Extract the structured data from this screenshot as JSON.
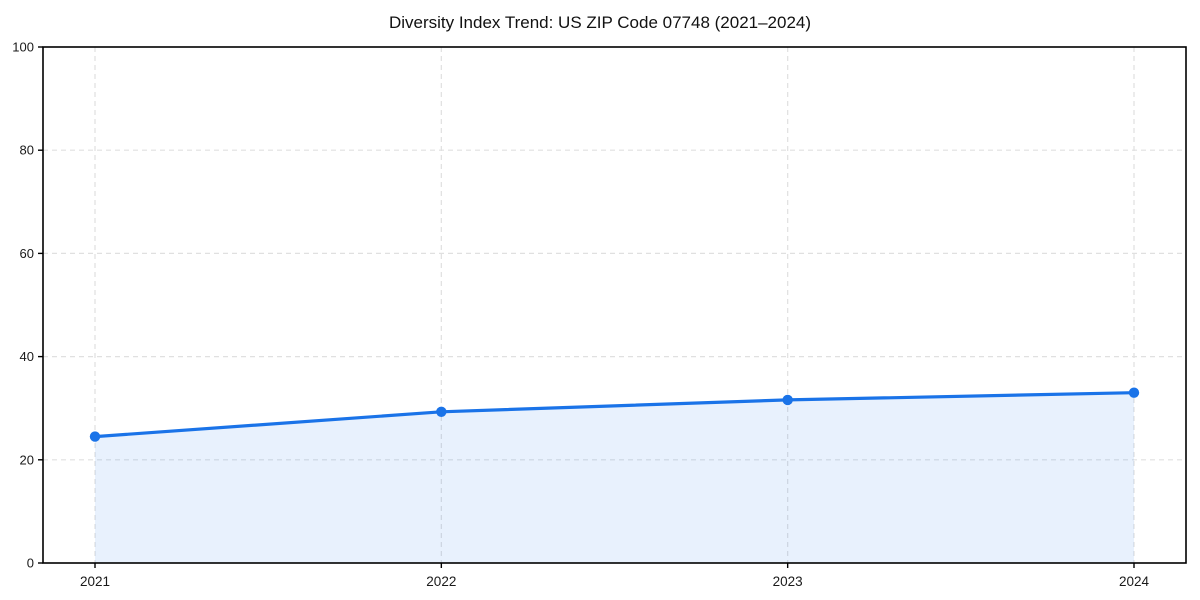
{
  "chart_data": {
    "type": "line",
    "style": "line-with-markers-and-area-fill",
    "title": "Diversity Index Trend: US ZIP Code 07748 (2021–2024)",
    "categories": [
      "2021",
      "2022",
      "2023",
      "2024"
    ],
    "series": [
      {
        "name": "Diversity Index",
        "values": [
          24.5,
          29.3,
          31.6,
          33.0
        ]
      }
    ],
    "xlabel": "",
    "ylabel": "",
    "ylim": [
      0,
      100
    ],
    "yticks": [
      0,
      20,
      40,
      60,
      80,
      100
    ],
    "grid": "dashed, both axes",
    "legend_position": "none",
    "colors": {
      "line": "#1a73e8",
      "marker": "#1a73e8",
      "area_fill": "#1a73e8",
      "area_fill_opacity": 0.1,
      "grid": "#e0e0e0",
      "spine": "#000000",
      "tick_label": "#1a1a1a",
      "background": "#ffffff"
    }
  }
}
